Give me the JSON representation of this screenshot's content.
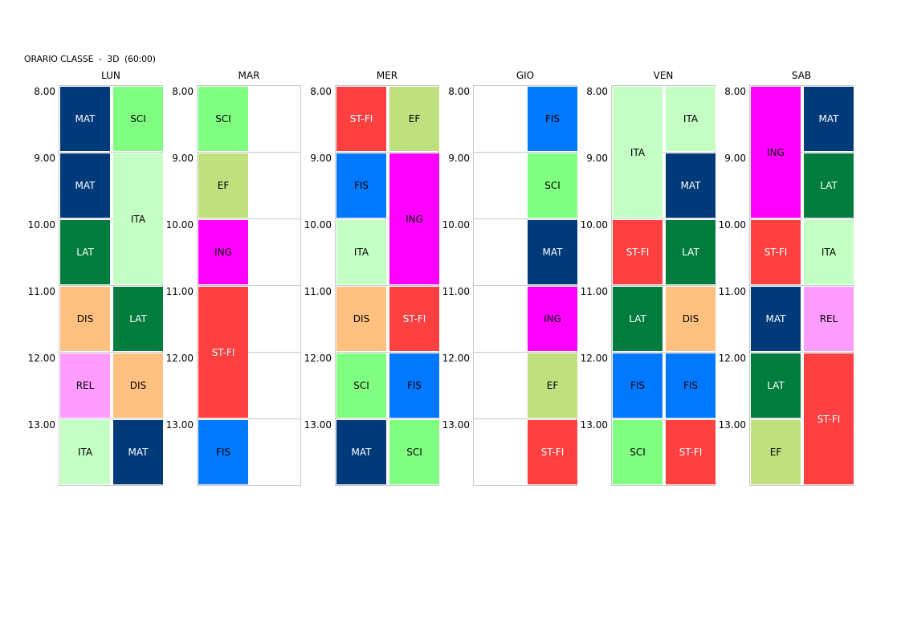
{
  "title": "ORARIO CLASSE  -  3D  (60:00)",
  "subjects": {
    "MAT": {
      "bg": "#003a7a",
      "fg": "light"
    },
    "SCI": {
      "bg": "#80ff80",
      "fg": "dark"
    },
    "ITA": {
      "bg": "#c4ffc4",
      "fg": "dark"
    },
    "LAT": {
      "bg": "#007c3e",
      "fg": "light"
    },
    "DIS": {
      "bg": "#ffc080",
      "fg": "dark"
    },
    "REL": {
      "bg": "#ff9cff",
      "fg": "dark"
    },
    "EF": {
      "bg": "#c0e080",
      "fg": "dark"
    },
    "ING": {
      "bg": "#ff00ff",
      "fg": "dark"
    },
    "ST-FI": {
      "bg": "#ff4040",
      "fg": "light"
    },
    "FIS": {
      "bg": "#0078ff",
      "fg": "dark"
    }
  },
  "times": [
    "8.00",
    "9.00",
    "10.00",
    "11.00",
    "12.00",
    "13.00"
  ],
  "days": [
    {
      "name": "LUN",
      "blocks": [
        {
          "col": 0,
          "start": 0,
          "span": 1,
          "subject": "MAT"
        },
        {
          "col": 1,
          "start": 0,
          "span": 1,
          "subject": "SCI"
        },
        {
          "col": 0,
          "start": 1,
          "span": 1,
          "subject": "MAT"
        },
        {
          "col": 1,
          "start": 1,
          "span": 2,
          "subject": "ITA"
        },
        {
          "col": 0,
          "start": 2,
          "span": 1,
          "subject": "LAT"
        },
        {
          "col": 0,
          "start": 3,
          "span": 1,
          "subject": "DIS"
        },
        {
          "col": 1,
          "start": 3,
          "span": 1,
          "subject": "LAT"
        },
        {
          "col": 0,
          "start": 4,
          "span": 1,
          "subject": "REL"
        },
        {
          "col": 1,
          "start": 4,
          "span": 1,
          "subject": "DIS"
        },
        {
          "col": 0,
          "start": 5,
          "span": 1,
          "subject": "ITA"
        },
        {
          "col": 1,
          "start": 5,
          "span": 1,
          "subject": "MAT"
        }
      ]
    },
    {
      "name": "MAR",
      "blocks": [
        {
          "col": 0,
          "start": 0,
          "span": 1,
          "subject": "SCI"
        },
        {
          "col": 0,
          "start": 1,
          "span": 1,
          "subject": "EF"
        },
        {
          "col": 0,
          "start": 2,
          "span": 1,
          "subject": "ING"
        },
        {
          "col": 0,
          "start": 3,
          "span": 2,
          "subject": "ST-FI"
        },
        {
          "col": 0,
          "start": 5,
          "span": 1,
          "subject": "FIS"
        }
      ]
    },
    {
      "name": "MER",
      "blocks": [
        {
          "col": 0,
          "start": 0,
          "span": 1,
          "subject": "ST-FI"
        },
        {
          "col": 1,
          "start": 0,
          "span": 1,
          "subject": "EF"
        },
        {
          "col": 0,
          "start": 1,
          "span": 1,
          "subject": "FIS"
        },
        {
          "col": 1,
          "start": 1,
          "span": 2,
          "subject": "ING"
        },
        {
          "col": 0,
          "start": 2,
          "span": 1,
          "subject": "ITA"
        },
        {
          "col": 0,
          "start": 3,
          "span": 1,
          "subject": "DIS"
        },
        {
          "col": 1,
          "start": 3,
          "span": 1,
          "subject": "ST-FI"
        },
        {
          "col": 0,
          "start": 4,
          "span": 1,
          "subject": "SCI"
        },
        {
          "col": 1,
          "start": 4,
          "span": 1,
          "subject": "FIS"
        },
        {
          "col": 0,
          "start": 5,
          "span": 1,
          "subject": "MAT"
        },
        {
          "col": 1,
          "start": 5,
          "span": 1,
          "subject": "SCI"
        }
      ]
    },
    {
      "name": "GIO",
      "blocks": [
        {
          "col": 1,
          "start": 0,
          "span": 1,
          "subject": "FIS"
        },
        {
          "col": 1,
          "start": 1,
          "span": 1,
          "subject": "SCI"
        },
        {
          "col": 1,
          "start": 2,
          "span": 1,
          "subject": "MAT"
        },
        {
          "col": 1,
          "start": 3,
          "span": 1,
          "subject": "ING"
        },
        {
          "col": 1,
          "start": 4,
          "span": 1,
          "subject": "EF"
        },
        {
          "col": 1,
          "start": 5,
          "span": 1,
          "subject": "ST-FI"
        }
      ]
    },
    {
      "name": "VEN",
      "blocks": [
        {
          "col": 0,
          "start": 0,
          "span": 2,
          "subject": "ITA"
        },
        {
          "col": 1,
          "start": 0,
          "span": 1,
          "subject": "ITA"
        },
        {
          "col": 1,
          "start": 1,
          "span": 1,
          "subject": "MAT"
        },
        {
          "col": 0,
          "start": 2,
          "span": 1,
          "subject": "ST-FI"
        },
        {
          "col": 1,
          "start": 2,
          "span": 1,
          "subject": "LAT"
        },
        {
          "col": 0,
          "start": 3,
          "span": 1,
          "subject": "LAT"
        },
        {
          "col": 1,
          "start": 3,
          "span": 1,
          "subject": "DIS"
        },
        {
          "col": 0,
          "start": 4,
          "span": 1,
          "subject": "FIS"
        },
        {
          "col": 1,
          "start": 4,
          "span": 1,
          "subject": "FIS"
        },
        {
          "col": 0,
          "start": 5,
          "span": 1,
          "subject": "SCI"
        },
        {
          "col": 1,
          "start": 5,
          "span": 1,
          "subject": "ST-FI"
        }
      ]
    },
    {
      "name": "SAB",
      "blocks": [
        {
          "col": 0,
          "start": 0,
          "span": 2,
          "subject": "ING"
        },
        {
          "col": 1,
          "start": 0,
          "span": 1,
          "subject": "MAT"
        },
        {
          "col": 1,
          "start": 1,
          "span": 1,
          "subject": "LAT"
        },
        {
          "col": 0,
          "start": 2,
          "span": 1,
          "subject": "ST-FI"
        },
        {
          "col": 1,
          "start": 2,
          "span": 1,
          "subject": "ITA"
        },
        {
          "col": 0,
          "start": 3,
          "span": 1,
          "subject": "MAT"
        },
        {
          "col": 1,
          "start": 3,
          "span": 1,
          "subject": "REL"
        },
        {
          "col": 0,
          "start": 4,
          "span": 1,
          "subject": "LAT"
        },
        {
          "col": 1,
          "start": 4,
          "span": 2,
          "subject": "ST-FI"
        },
        {
          "col": 0,
          "start": 5,
          "span": 1,
          "subject": "EF"
        }
      ]
    }
  ]
}
